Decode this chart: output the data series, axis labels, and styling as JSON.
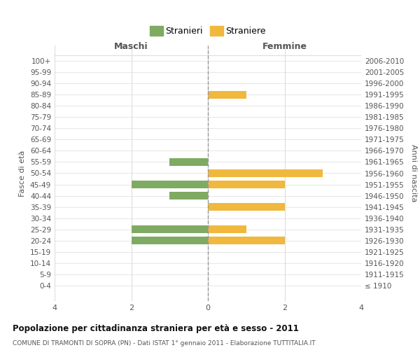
{
  "age_groups": [
    "100+",
    "95-99",
    "90-94",
    "85-89",
    "80-84",
    "75-79",
    "70-74",
    "65-69",
    "60-64",
    "55-59",
    "50-54",
    "45-49",
    "40-44",
    "35-39",
    "30-34",
    "25-29",
    "20-24",
    "15-19",
    "10-14",
    "5-9",
    "0-4"
  ],
  "birth_years": [
    "≤ 1910",
    "1911-1915",
    "1916-1920",
    "1921-1925",
    "1926-1930",
    "1931-1935",
    "1936-1940",
    "1941-1945",
    "1946-1950",
    "1951-1955",
    "1956-1960",
    "1961-1965",
    "1966-1970",
    "1971-1975",
    "1976-1980",
    "1981-1985",
    "1986-1990",
    "1991-1995",
    "1996-2000",
    "2001-2005",
    "2006-2010"
  ],
  "maschi": [
    0,
    0,
    0,
    0,
    0,
    0,
    0,
    0,
    0,
    1,
    0,
    2,
    1,
    0,
    0,
    2,
    2,
    0,
    0,
    0,
    0
  ],
  "femmine": [
    0,
    0,
    0,
    1,
    0,
    0,
    0,
    0,
    0,
    0,
    3,
    2,
    0,
    2,
    0,
    1,
    2,
    0,
    0,
    0,
    0
  ],
  "color_maschi": "#7faa62",
  "color_femmine": "#f0b83c",
  "title_main": "Popolazione per cittadinanza straniera per età e sesso - 2011",
  "title_sub": "COMUNE DI TRAMONTI DI SOPRA (PN) - Dati ISTAT 1° gennaio 2011 - Elaborazione TUTTITALIA.IT",
  "legend_maschi": "Stranieri",
  "legend_femmine": "Straniere",
  "xlabel_left": "Maschi",
  "xlabel_right": "Femmine",
  "ylabel_left": "Fasce di età",
  "ylabel_right": "Anni di nascita",
  "xlim": 4,
  "background_color": "#ffffff",
  "grid_color": "#dddddd",
  "dashed_line_color": "#999999"
}
